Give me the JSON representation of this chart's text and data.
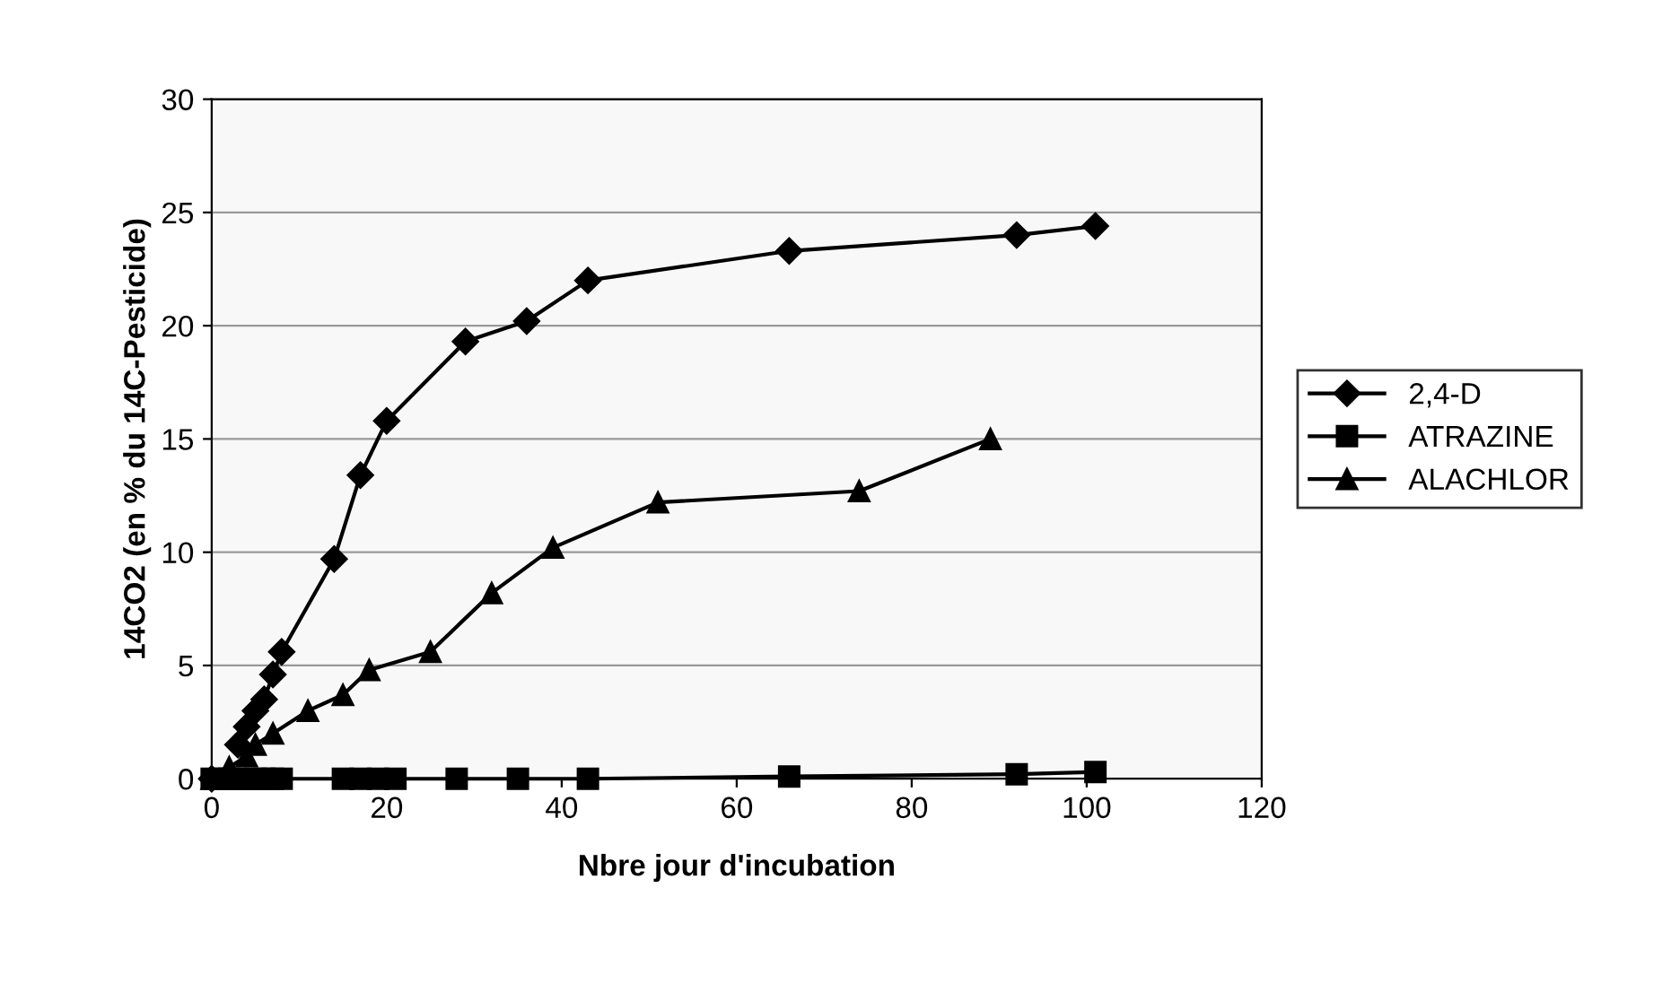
{
  "chart_data": {
    "type": "line",
    "xlabel": "Nbre jour d'incubation",
    "ylabel": "14CO2 (en % du 14C-Pesticide)",
    "xlim": [
      0,
      120
    ],
    "xticks": [
      0,
      20,
      40,
      60,
      80,
      100,
      120
    ],
    "ylim": [
      0,
      30
    ],
    "yticks": [
      0,
      5,
      10,
      15,
      20,
      25,
      30
    ],
    "grid": "y",
    "legend": "right",
    "line_style": "solid",
    "series": [
      {
        "name": "2,4-D",
        "color": "#000000",
        "marker": "diamond",
        "x": [
          0,
          2,
          3,
          4,
          5,
          6,
          7,
          8,
          14,
          17,
          20,
          29,
          36,
          43,
          66,
          92,
          101
        ],
        "values": [
          0,
          null,
          1.5,
          2.3,
          3,
          3.5,
          4.6,
          5.6,
          9.7,
          13.4,
          15.8,
          19.3,
          20.2,
          22,
          23.3,
          24,
          24.4
        ]
      },
      {
        "name": "ATRAZINE",
        "color": "#000000",
        "marker": "square",
        "x": [
          0,
          1,
          2,
          3,
          4,
          5,
          6,
          7,
          8,
          15,
          17,
          19,
          21,
          28,
          35,
          43,
          66,
          92,
          101
        ],
        "values": [
          0,
          0,
          0,
          0,
          0,
          0,
          0,
          0,
          0,
          0,
          0,
          0,
          0,
          0,
          0,
          0,
          0.1,
          0.2,
          0.3
        ]
      },
      {
        "name": "ALACHLOR",
        "color": "#000000",
        "marker": "triangle",
        "x": [
          0,
          2,
          4,
          5,
          7,
          11,
          15,
          18,
          25,
          32,
          39,
          51,
          74,
          89
        ],
        "values": [
          0,
          0.5,
          1,
          1.5,
          2,
          3,
          3.7,
          4.8,
          5.6,
          8.2,
          10.2,
          12.2,
          12.7,
          15
        ]
      }
    ]
  }
}
